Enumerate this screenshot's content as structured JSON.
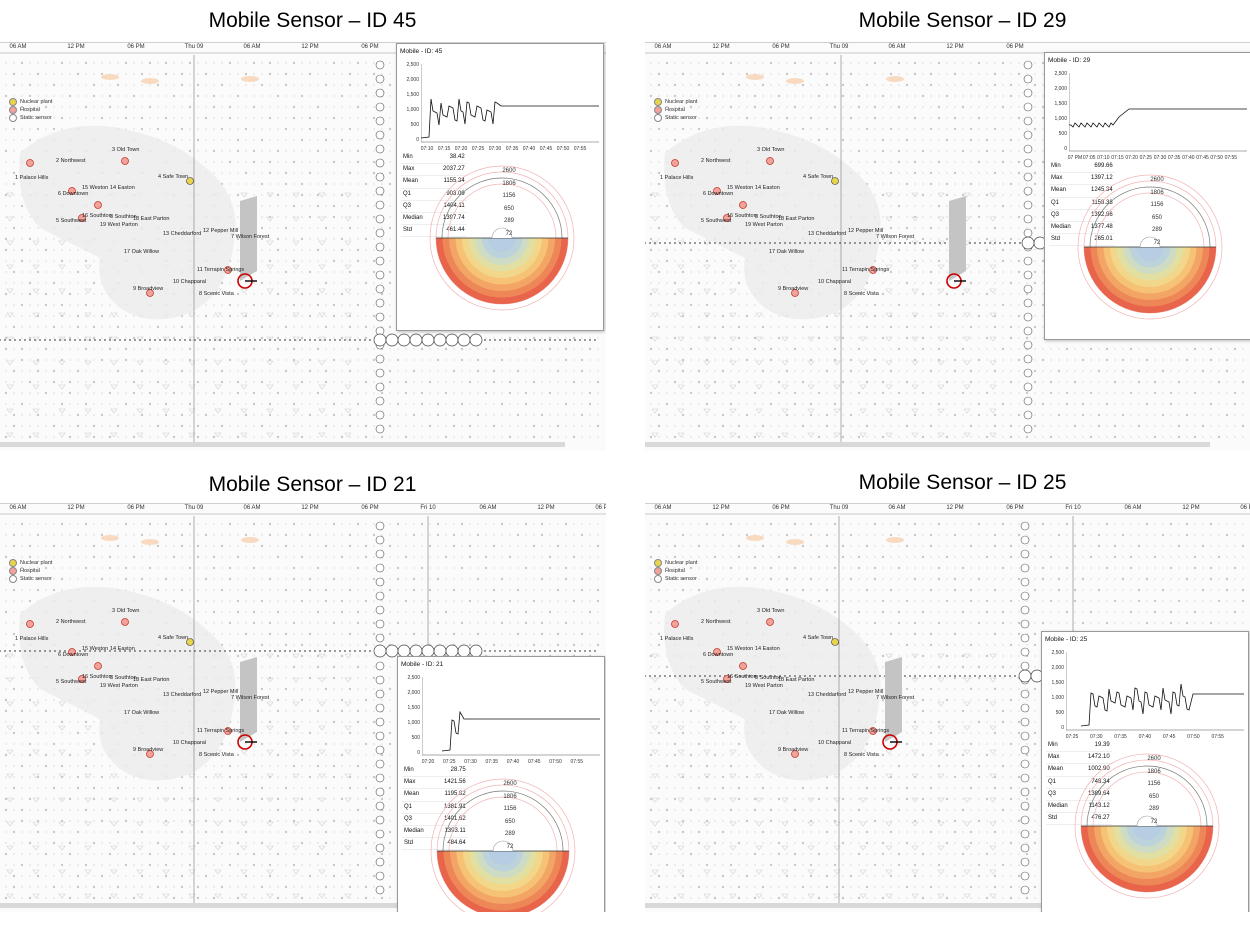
{
  "titles": [
    "Mobile Sensor – ID 45",
    "Mobile Sensor – ID 29",
    "Mobile Sensor – ID 21",
    "Mobile Sensor – ID 25"
  ],
  "time_axis": [
    "06 AM",
    "12 PM",
    "06 PM",
    "Thu 09",
    "06 AM",
    "12 PM",
    "06 PM",
    "Fri 10",
    "06 AM",
    "12 PM",
    "06 PM"
  ],
  "legend": {
    "nuclear": "Nuclear plant",
    "hospital": "Hospital",
    "static": "Static sensor"
  },
  "cities": [
    "1 Palace Hills",
    "2 Northwest",
    "3 Old Town",
    "4 Safe Town",
    "5 Southwest",
    "6 Downtown",
    "8 Southton",
    "9 Broadview",
    "10 Chapparal",
    "11 Terrapin Springs",
    "12 Pepper Mill",
    "13 Cheddarford",
    "14 Easton",
    "15 Weston",
    "16 Southton",
    "17 Oak Willow",
    "18 East Parton",
    "19 West Parton",
    "7 Wilson Forest",
    "8 Scenic Vista"
  ],
  "stat_labels": [
    "Min",
    "Max",
    "Mean",
    "Q1",
    "Q3",
    "Median",
    "Std"
  ],
  "ring_labels": [
    "2600",
    "1806",
    "1156",
    "650",
    "289",
    "72"
  ],
  "y_ticks": [
    "2,500",
    "2,000",
    "1,500",
    "1,000",
    "500",
    "0"
  ],
  "popups": [
    {
      "title": "Mobile - ID: 45",
      "x_ticks": [
        "07:10",
        "07:15",
        "07:20",
        "07:25",
        "07:30",
        "07:35",
        "07:40",
        "07:45",
        "07:50",
        "07:55"
      ],
      "stats": [
        "38.42",
        "2037.27",
        "1155.34",
        "903.09",
        "1404.11",
        "1397.74",
        "461.44"
      ]
    },
    {
      "title": "Mobile - ID: 29",
      "x_ticks": [
        "07 PM",
        "07:05",
        "07:10",
        "07:15",
        "07:20",
        "07:25",
        "07:30",
        "07:35",
        "07:40",
        "07:45",
        "07:50",
        "07:55"
      ],
      "stats": [
        "699.66",
        "1397.12",
        "1245.34",
        "1158.38",
        "1392.86",
        "1377.48",
        "265.01"
      ]
    },
    {
      "title": "Mobile - ID: 21",
      "x_ticks": [
        "07:20",
        "07:25",
        "07:30",
        "07:35",
        "07:40",
        "07:45",
        "07:50",
        "07:55"
      ],
      "stats": [
        "28.75",
        "1421.56",
        "1195.82",
        "1381.91",
        "1401.62",
        "1393.11",
        "484.64"
      ]
    },
    {
      "title": "Mobile - ID: 25",
      "x_ticks": [
        "07:25",
        "07:30",
        "07:35",
        "07:40",
        "07:45",
        "07:50",
        "07:55"
      ],
      "stats": [
        "19.39",
        "1472.10",
        "1002.90",
        "748.34",
        "1389.64",
        "1143.12",
        "476.27"
      ]
    }
  ]
}
